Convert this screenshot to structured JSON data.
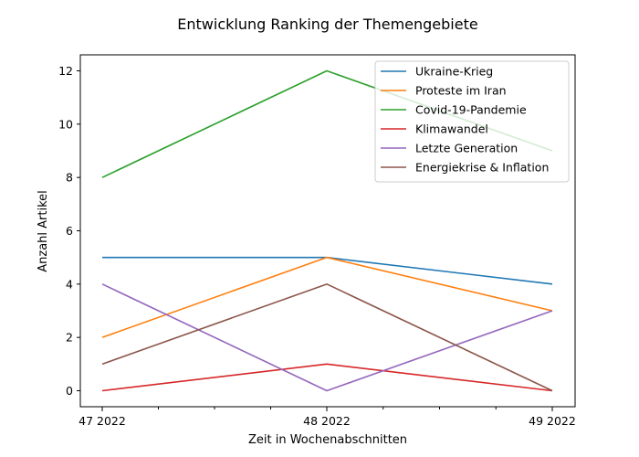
{
  "chart_data": {
    "type": "line",
    "title": "Entwicklung Ranking der Themengebiete",
    "xlabel": "Zeit in Wochenabschnitten",
    "ylabel": "Anzahl Artikel",
    "categories": [
      "47 2022",
      "48 2022",
      "49 2022"
    ],
    "yticks": [
      0,
      2,
      4,
      6,
      8,
      10,
      12
    ],
    "ylim": [
      -0.6,
      12.6
    ],
    "grid": false,
    "legend_position": "top-right",
    "series": [
      {
        "name": "Ukraine-Krieg",
        "values": [
          5,
          5,
          4
        ],
        "color": "#1f77b4"
      },
      {
        "name": "Proteste im Iran",
        "values": [
          2,
          5,
          3
        ],
        "color": "#ff7f0e"
      },
      {
        "name": "Covid-19-Pandemie",
        "values": [
          8,
          12,
          9
        ],
        "color": "#2ca02c"
      },
      {
        "name": "Klimawandel",
        "values": [
          0,
          1,
          0
        ],
        "color": "#d62728"
      },
      {
        "name": "Letzte Generation",
        "values": [
          4,
          0,
          3
        ],
        "color": "#9467bd"
      },
      {
        "name": "Energiekrise & Inflation",
        "values": [
          1,
          4,
          0
        ],
        "color": "#8c564b"
      }
    ]
  }
}
